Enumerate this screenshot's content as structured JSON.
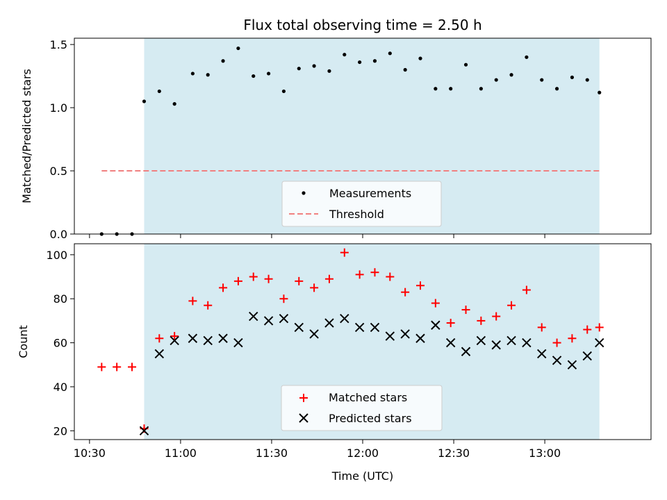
{
  "chart_data": [
    {
      "type": "scatter",
      "title": "Flux total observing time = 2.50 h",
      "ylabel": "Matched/Predicted stars",
      "xlabel": "",
      "ylim": [
        0,
        1.55
      ],
      "yticks": [
        0.0,
        0.5,
        1.0,
        1.5
      ],
      "ytick_labels": [
        "0.0",
        "0.5",
        "1.0",
        "1.5"
      ],
      "x_range": [
        "10:25",
        "13:35"
      ],
      "shaded_interval": [
        "10:48",
        "13:18"
      ],
      "shade_color": "#add8e6",
      "threshold": {
        "name": "Threshold",
        "value": 0.5,
        "x_from": "10:34",
        "x_to": "13:18",
        "color": "#f08080"
      },
      "legend": {
        "placement": "lower center",
        "entries": [
          "Measurements",
          "Threshold"
        ]
      },
      "series": [
        {
          "name": "Measurements",
          "marker": "dot",
          "color": "#000000",
          "x": [
            "10:34",
            "10:39",
            "10:44",
            "10:48",
            "10:53",
            "10:58",
            "11:04",
            "11:09",
            "11:14",
            "11:19",
            "11:24",
            "11:29",
            "11:34",
            "11:39",
            "11:44",
            "11:49",
            "11:54",
            "11:59",
            "12:04",
            "12:09",
            "12:14",
            "12:19",
            "12:24",
            "12:29",
            "12:34",
            "12:39",
            "12:44",
            "12:49",
            "12:54",
            "12:59",
            "13:04",
            "13:09",
            "13:14",
            "13:18"
          ],
          "y": [
            0.0,
            0.0,
            0.0,
            1.05,
            1.13,
            1.03,
            1.27,
            1.26,
            1.37,
            1.47,
            1.25,
            1.27,
            1.13,
            1.31,
            1.33,
            1.29,
            1.42,
            1.36,
            1.37,
            1.43,
            1.3,
            1.39,
            1.15,
            1.15,
            1.34,
            1.15,
            1.22,
            1.26,
            1.4,
            1.22,
            1.15,
            1.24,
            1.22,
            1.12
          ]
        }
      ]
    },
    {
      "type": "scatter",
      "title": "",
      "ylabel": "Count",
      "xlabel": "Time (UTC)",
      "ylim": [
        16,
        105
      ],
      "yticks": [
        20,
        40,
        60,
        80,
        100
      ],
      "ytick_labels": [
        "20",
        "40",
        "60",
        "80",
        "100"
      ],
      "x_range": [
        "10:25",
        "13:35"
      ],
      "xticks": [
        "10:30",
        "11:00",
        "11:30",
        "12:00",
        "12:30",
        "13:00"
      ],
      "xtick_labels": [
        "10:30",
        "11:00",
        "11:30",
        "12:00",
        "12:30",
        "13:00"
      ],
      "shaded_interval": [
        "10:48",
        "13:18"
      ],
      "shade_color": "#add8e6",
      "legend": {
        "placement": "lower center",
        "entries": [
          "Matched stars",
          "Predicted stars"
        ]
      },
      "series": [
        {
          "name": "Matched stars",
          "marker": "plus",
          "color": "#ff0000",
          "x": [
            "10:34",
            "10:39",
            "10:44",
            "10:48",
            "10:53",
            "10:58",
            "11:04",
            "11:09",
            "11:14",
            "11:19",
            "11:24",
            "11:29",
            "11:34",
            "11:39",
            "11:44",
            "11:49",
            "11:54",
            "11:59",
            "12:04",
            "12:09",
            "12:14",
            "12:19",
            "12:24",
            "12:29",
            "12:34",
            "12:39",
            "12:44",
            "12:49",
            "12:54",
            "12:59",
            "13:04",
            "13:09",
            "13:14",
            "13:18"
          ],
          "y": [
            49,
            49,
            49,
            21,
            62,
            63,
            79,
            77,
            85,
            88,
            90,
            89,
            80,
            88,
            85,
            89,
            101,
            91,
            92,
            90,
            83,
            86,
            78,
            69,
            75,
            70,
            72,
            77,
            84,
            67,
            60,
            62,
            66,
            67
          ]
        },
        {
          "name": "Predicted stars",
          "marker": "x",
          "color": "#000000",
          "x": [
            "10:48",
            "10:53",
            "10:58",
            "11:04",
            "11:09",
            "11:14",
            "11:19",
            "11:24",
            "11:29",
            "11:34",
            "11:39",
            "11:44",
            "11:49",
            "11:54",
            "11:59",
            "12:04",
            "12:09",
            "12:14",
            "12:19",
            "12:24",
            "12:29",
            "12:34",
            "12:39",
            "12:44",
            "12:49",
            "12:54",
            "12:59",
            "13:04",
            "13:09",
            "13:14",
            "13:18"
          ],
          "y": [
            20,
            55,
            61,
            62,
            61,
            62,
            60,
            72,
            70,
            71,
            67,
            64,
            69,
            71,
            67,
            67,
            63,
            64,
            62,
            68,
            60,
            56,
            61,
            59,
            61,
            60,
            55,
            52,
            50,
            54,
            60
          ]
        }
      ]
    }
  ]
}
